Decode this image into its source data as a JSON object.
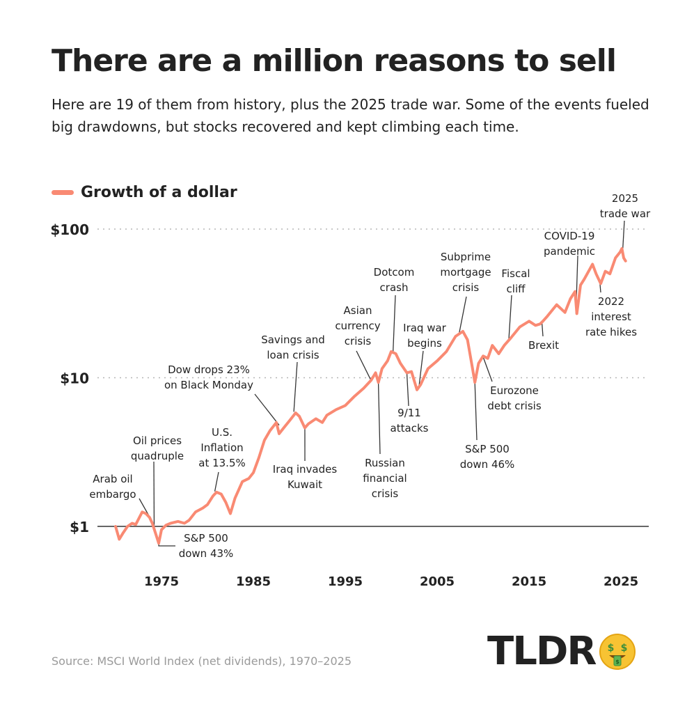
{
  "title": "There are a million reasons to sell",
  "subtitle": "Here are 19 of them from history, plus the 2025 trade war. Some of the events fueled big drawdowns, but stocks recovered and kept climbing each time.",
  "legend": {
    "label": "Growth of a dollar",
    "color": "#F98A73"
  },
  "source": "Source: MSCI World Index (net dividends), 1970–2025",
  "brand": {
    "name": "TLDR",
    "emoji": "money-mouth-face-icon"
  },
  "colors": {
    "line": "#F98A73",
    "text": "#222222",
    "axis": "#333333",
    "grid": "#b5b5b5",
    "source": "#9a9a9a"
  },
  "chart_data": {
    "type": "line",
    "y_scale": "log",
    "ylim": [
      1,
      100
    ],
    "xlim": [
      1970,
      2025.6
    ],
    "y_ticks": [
      {
        "value": 1,
        "label": "$1"
      },
      {
        "value": 10,
        "label": "$10"
      },
      {
        "value": 100,
        "label": "$100"
      }
    ],
    "x_ticks": [
      {
        "value": 1975,
        "label": "1975"
      },
      {
        "value": 1985,
        "label": "1985"
      },
      {
        "value": 1995,
        "label": "1995"
      },
      {
        "value": 2005,
        "label": "2005"
      },
      {
        "value": 2015,
        "label": "2015"
      },
      {
        "value": 2025,
        "label": "2025"
      }
    ],
    "grid": "dotted horizontal at $10 and $100",
    "series": [
      {
        "name": "Growth of a dollar",
        "points": [
          [
            1970.0,
            1.0
          ],
          [
            1970.4,
            0.82
          ],
          [
            1970.8,
            0.9
          ],
          [
            1971.3,
            1.0
          ],
          [
            1971.8,
            1.05
          ],
          [
            1972.2,
            1.03
          ],
          [
            1972.6,
            1.15
          ],
          [
            1972.9,
            1.25
          ],
          [
            1973.3,
            1.22
          ],
          [
            1973.7,
            1.15
          ],
          [
            1974.0,
            1.05
          ],
          [
            1974.4,
            0.88
          ],
          [
            1974.7,
            0.77
          ],
          [
            1975.0,
            0.95
          ],
          [
            1975.5,
            1.02
          ],
          [
            1976.0,
            1.05
          ],
          [
            1976.8,
            1.08
          ],
          [
            1977.5,
            1.05
          ],
          [
            1978.0,
            1.1
          ],
          [
            1978.7,
            1.25
          ],
          [
            1979.5,
            1.33
          ],
          [
            1980.0,
            1.4
          ],
          [
            1980.6,
            1.6
          ],
          [
            1981.0,
            1.7
          ],
          [
            1981.5,
            1.65
          ],
          [
            1982.0,
            1.45
          ],
          [
            1982.5,
            1.22
          ],
          [
            1983.0,
            1.55
          ],
          [
            1983.8,
            2.0
          ],
          [
            1984.5,
            2.1
          ],
          [
            1985.0,
            2.3
          ],
          [
            1985.6,
            2.9
          ],
          [
            1986.2,
            3.8
          ],
          [
            1986.8,
            4.4
          ],
          [
            1987.5,
            5.0
          ],
          [
            1987.8,
            4.2
          ],
          [
            1988.3,
            4.6
          ],
          [
            1989.0,
            5.2
          ],
          [
            1989.6,
            5.8
          ],
          [
            1990.0,
            5.5
          ],
          [
            1990.6,
            4.6
          ],
          [
            1991.0,
            4.9
          ],
          [
            1991.8,
            5.3
          ],
          [
            1992.5,
            5.0
          ],
          [
            1993.0,
            5.6
          ],
          [
            1994.0,
            6.1
          ],
          [
            1995.0,
            6.5
          ],
          [
            1996.0,
            7.5
          ],
          [
            1997.0,
            8.5
          ],
          [
            1997.8,
            9.6
          ],
          [
            1998.3,
            10.8
          ],
          [
            1998.6,
            9.3
          ],
          [
            1999.0,
            11.5
          ],
          [
            1999.6,
            13.0
          ],
          [
            2000.0,
            15.0
          ],
          [
            2000.5,
            14.5
          ],
          [
            2001.0,
            12.5
          ],
          [
            2001.7,
            10.8
          ],
          [
            2002.2,
            11.0
          ],
          [
            2002.8,
            8.3
          ],
          [
            2003.2,
            9.0
          ],
          [
            2004.0,
            11.5
          ],
          [
            2005.0,
            13.0
          ],
          [
            2006.0,
            15.0
          ],
          [
            2007.0,
            19.0
          ],
          [
            2007.8,
            20.5
          ],
          [
            2008.3,
            18.0
          ],
          [
            2008.8,
            12.0
          ],
          [
            2009.1,
            9.3
          ],
          [
            2009.5,
            12.5
          ],
          [
            2010.0,
            14.0
          ],
          [
            2010.5,
            13.5
          ],
          [
            2011.0,
            16.5
          ],
          [
            2011.7,
            14.5
          ],
          [
            2012.3,
            16.5
          ],
          [
            2013.0,
            18.5
          ],
          [
            2014.0,
            22.0
          ],
          [
            2015.0,
            24.0
          ],
          [
            2015.7,
            22.5
          ],
          [
            2016.2,
            23.0
          ],
          [
            2016.5,
            24.0
          ],
          [
            2017.0,
            26.0
          ],
          [
            2018.0,
            31.0
          ],
          [
            2018.9,
            27.5
          ],
          [
            2019.5,
            34.0
          ],
          [
            2020.0,
            38.0
          ],
          [
            2020.2,
            27.0
          ],
          [
            2020.6,
            42.0
          ],
          [
            2021.0,
            46.0
          ],
          [
            2021.9,
            58.0
          ],
          [
            2022.3,
            50.0
          ],
          [
            2022.8,
            43.0
          ],
          [
            2023.3,
            52.0
          ],
          [
            2023.8,
            50.0
          ],
          [
            2024.4,
            64.0
          ],
          [
            2024.9,
            70.0
          ],
          [
            2025.1,
            74.0
          ],
          [
            2025.3,
            64.0
          ],
          [
            2025.5,
            61.0
          ]
        ]
      }
    ],
    "annotations": [
      {
        "id": "arab-oil-embargo",
        "lines": [
          "Arab oil",
          "embargo"
        ],
        "x": 1973.8,
        "y": 1.13
      },
      {
        "id": "oil-prices-quadruple",
        "lines": [
          "Oil prices",
          "quadruple"
        ],
        "x": 1974.2,
        "y": 1.0
      },
      {
        "id": "sp500-down-43",
        "lines": [
          "S&P 500",
          "down 43%"
        ],
        "x": 1974.7,
        "y": 0.78
      },
      {
        "id": "us-inflation",
        "lines": [
          "U.S.",
          "Inflation",
          "at 13.5%"
        ],
        "x": 1980.8,
        "y": 1.72
      },
      {
        "id": "black-monday",
        "lines": [
          "Dow drops 23%",
          "on Black Monday"
        ],
        "x": 1987.8,
        "y": 4.8
      },
      {
        "id": "savings-loan",
        "lines": [
          "Savings and",
          "loan crisis"
        ],
        "x": 1989.4,
        "y": 5.9
      },
      {
        "id": "iraq-kuwait",
        "lines": [
          "Iraq invades",
          "Kuwait"
        ],
        "x": 1990.6,
        "y": 4.7
      },
      {
        "id": "asian-currency",
        "lines": [
          "Asian",
          "currency",
          "crisis"
        ],
        "x": 1997.8,
        "y": 9.6
      },
      {
        "id": "russian-financial",
        "lines": [
          "Russian",
          "financial",
          "crisis"
        ],
        "x": 1998.6,
        "y": 9.3
      },
      {
        "id": "dotcom",
        "lines": [
          "Dotcom",
          "crash"
        ],
        "x": 2000.2,
        "y": 15.0
      },
      {
        "id": "nine-eleven",
        "lines": [
          "9/11",
          "attacks"
        ],
        "x": 2001.7,
        "y": 10.8
      },
      {
        "id": "iraq-war",
        "lines": [
          "Iraq war",
          "begins"
        ],
        "x": 2003.0,
        "y": 8.5
      },
      {
        "id": "subprime",
        "lines": [
          "Subprime",
          "mortgage",
          "crisis"
        ],
        "x": 2007.4,
        "y": 20.0
      },
      {
        "id": "sp500-down-46",
        "lines": [
          "S&P 500",
          "down 46%"
        ],
        "x": 2009.1,
        "y": 9.3
      },
      {
        "id": "eurozone",
        "lines": [
          "Eurozone",
          "debt crisis"
        ],
        "x": 2010.0,
        "y": 13.8
      },
      {
        "id": "fiscal-cliff",
        "lines": [
          "Fiscal",
          "cliff"
        ],
        "x": 2012.8,
        "y": 18.3
      },
      {
        "id": "brexit",
        "lines": [
          "Brexit"
        ],
        "x": 2016.4,
        "y": 23.5
      },
      {
        "id": "covid",
        "lines": [
          "COVID-19",
          "pandemic"
        ],
        "x": 2020.1,
        "y": 27.0
      },
      {
        "id": "rate-hikes",
        "lines": [
          "2022",
          "interest",
          "rate hikes"
        ],
        "x": 2022.7,
        "y": 44.0
      },
      {
        "id": "trade-war",
        "lines": [
          "2025",
          "trade war"
        ],
        "x": 2025.2,
        "y": 74.0
      }
    ]
  }
}
